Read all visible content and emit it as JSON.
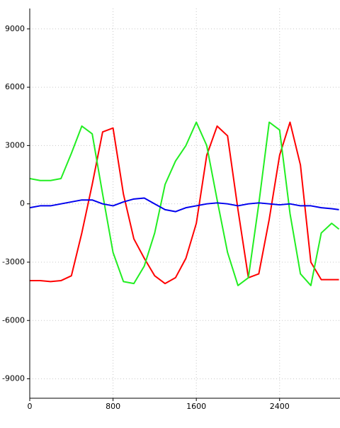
{
  "chart_data": {
    "type": "line",
    "x": [
      0,
      100,
      200,
      300,
      400,
      500,
      600,
      700,
      800,
      900,
      1000,
      1100,
      1200,
      1300,
      1400,
      1500,
      1600,
      1700,
      1800,
      1900,
      2000,
      2100,
      2200,
      2300,
      2400,
      2500,
      2600,
      2700,
      2800,
      2900,
      2970
    ],
    "series": [
      {
        "color": "#ff0000",
        "values": [
          -3950,
          -3950,
          -4000,
          -3950,
          -3700,
          -1500,
          1000,
          3700,
          3900,
          500,
          -1800,
          -2800,
          -3700,
          -4100,
          -3800,
          -2800,
          -1000,
          2500,
          4000,
          3500,
          -300,
          -3800,
          -3600,
          -800,
          2500,
          4200,
          2000,
          -3000,
          -3900,
          -3900,
          -3900
        ]
      },
      {
        "color": "#22ee22",
        "values": [
          1300,
          1200,
          1200,
          1300,
          2600,
          4000,
          3600,
          500,
          -2500,
          -4000,
          -4100,
          -3200,
          -1500,
          1000,
          2200,
          3000,
          4200,
          3000,
          200,
          -2500,
          -4200,
          -3800,
          0,
          4200,
          3800,
          -500,
          -3600,
          -4200,
          -1500,
          -1000,
          -1300
        ]
      },
      {
        "color": "#0000ee",
        "values": [
          -200,
          -100,
          -100,
          0,
          100,
          200,
          200,
          0,
          -100,
          100,
          250,
          300,
          0,
          -300,
          -400,
          -200,
          -100,
          0,
          50,
          0,
          -100,
          0,
          50,
          0,
          -50,
          0,
          -100,
          -100,
          -200,
          -250,
          -300
        ]
      }
    ],
    "xlim": [
      0,
      2980
    ],
    "ylim": [
      -10000,
      10050
    ],
    "xticks": [
      0,
      800,
      1600,
      2400
    ],
    "yticks": [
      -9000,
      -6000,
      -3000,
      0,
      3000,
      6000,
      9000
    ],
    "grid": true
  }
}
